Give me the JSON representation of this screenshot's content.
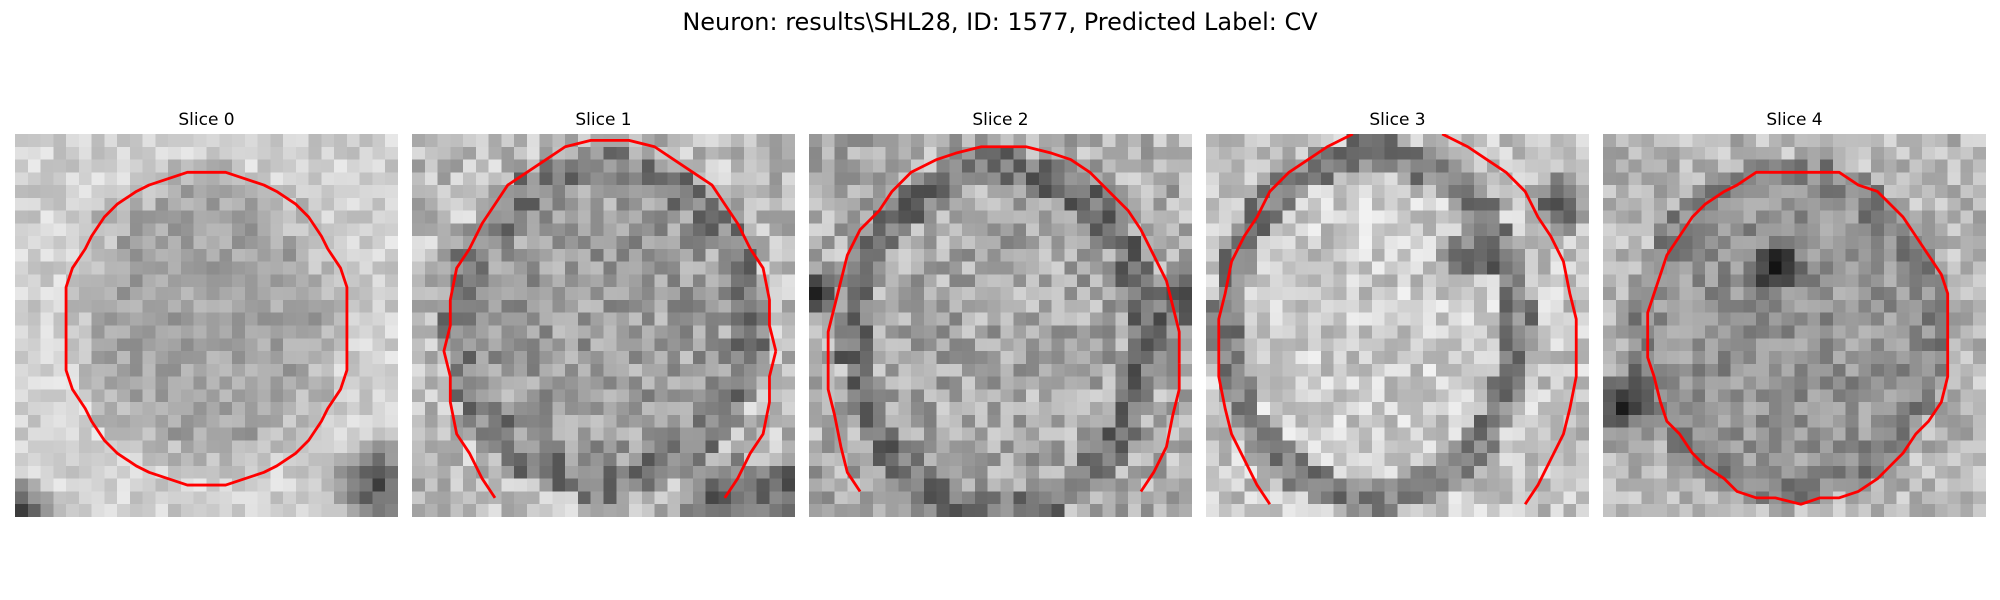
{
  "figure": {
    "title": "Neuron: results\\SHL28, ID: 1577, Predicted Label: CV"
  },
  "colors": {
    "contour": "#ff0000",
    "background": "#ffffff"
  },
  "slices": [
    {
      "label": "Slice 0"
    },
    {
      "label": "Slice 1"
    },
    {
      "label": "Slice 2"
    },
    {
      "label": "Slice 3"
    },
    {
      "label": "Slice 4"
    }
  ]
}
